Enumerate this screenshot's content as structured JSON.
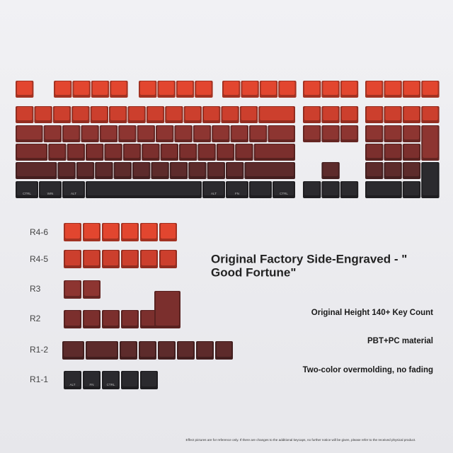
{
  "headline": [
    "Original Factory Side-Engraved - \"",
    "Good Fortune\""
  ],
  "features": [
    "Original Height 140+ Key Count",
    "PBT+PC material",
    "Two-color overmolding, no fading"
  ],
  "rows": [
    {
      "label": "R4-6"
    },
    {
      "label": "R4-5"
    },
    {
      "label": "R3"
    },
    {
      "label": "R2"
    },
    {
      "label": "R1-2"
    },
    {
      "label": "R1-1"
    }
  ],
  "keyboard_legends": [
    "CTRL",
    "WIN",
    "ALT",
    "ALT",
    "FN",
    "CTRL"
  ],
  "r1_1_legends": [
    "ALT",
    "FN",
    "CTRL"
  ],
  "footnote": "Effect pictures are for reference only. If there are changes to the additional keycaps, no further notice will be given, please refer to the received physical product."
}
